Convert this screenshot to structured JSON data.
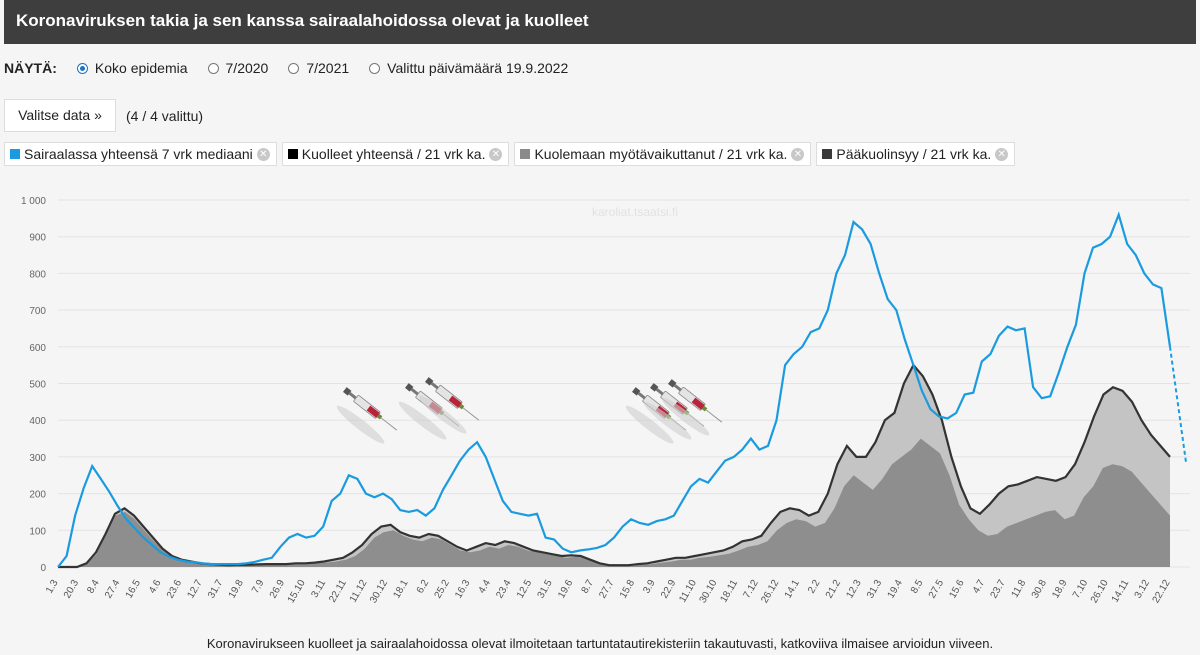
{
  "header": {
    "title": "Koronaviruksen takia ja sen kanssa sairaalahoidossa olevat ja kuolleet"
  },
  "controls": {
    "label": "NÄYTÄ:",
    "options": [
      "Koko epidemia",
      "7/2020",
      "7/2021",
      "Valittu päivämäärä 19.9.2022"
    ],
    "selected_index": 0
  },
  "select_data": {
    "button_label": "Valitse data »",
    "count_text": "(4 / 4 valittu)"
  },
  "legend": [
    {
      "label": "Sairaalassa yhteensä 7 vrk mediaani",
      "color": "#1a9be0"
    },
    {
      "label": "Kuolleet yhteensä / 21 vrk ka.",
      "color": "#000000"
    },
    {
      "label": "Kuolemaan myötävaikuttanut / 21 vrk ka.",
      "color": "#8a8a8a"
    },
    {
      "label": "Pääkuolinsyy / 21 vrk ka.",
      "color": "#3a3a3a"
    }
  ],
  "watermark": "karoliat.tsaatsi.fi",
  "footnote": "Koronavirukseen kuolleet ja sairaalahoidossa olevat ilmoitetaan tartuntatautirekisteriin takautuvasti, katkoviiva ilmaisee arvioidun viiveen.",
  "icons": {
    "vaccine": "syringe-icon",
    "remove": "close-circle-icon"
  },
  "chart_data": {
    "type": "area",
    "ylim": [
      0,
      1000
    ],
    "yticks": [
      "0",
      "100",
      "200",
      "300",
      "400",
      "500",
      "600",
      "700",
      "800",
      "900",
      "1 000"
    ],
    "x_tick_labels": [
      "1.3",
      "20.3",
      "8.4",
      "27.4",
      "16.5",
      "4.6",
      "23.6",
      "12.7",
      "31.7",
      "19.8",
      "7.9",
      "26.9",
      "15.10",
      "3.11",
      "22.11",
      "11.12",
      "30.12",
      "18.1",
      "6.2",
      "25.2",
      "16.3",
      "4.4",
      "23.4",
      "12.5",
      "31.5",
      "19.6",
      "8.7",
      "27.7",
      "15.8",
      "3.9",
      "22.9",
      "11.10",
      "30.10",
      "18.11",
      "7.12",
      "26.12",
      "14.1",
      "2.2",
      "21.2",
      "12.3",
      "31.3",
      "19.4",
      "8.5",
      "27.5",
      "15.6",
      "4.7",
      "23.7",
      "11.8",
      "30.8",
      "18.9",
      "7.10",
      "26.10",
      "14.11",
      "3.12",
      "22.12"
    ],
    "series": [
      {
        "name": "Sairaalassa yhteensä 7 vrk mediaani",
        "color": "#1a9be0",
        "values": [
          0,
          30,
          140,
          215,
          275,
          240,
          205,
          165,
          130,
          105,
          80,
          60,
          40,
          28,
          20,
          15,
          13,
          10,
          8,
          8,
          8,
          8,
          10,
          14,
          20,
          25,
          55,
          80,
          90,
          80,
          85,
          110,
          180,
          200,
          250,
          240,
          200,
          190,
          200,
          185,
          155,
          150,
          155,
          140,
          160,
          210,
          250,
          290,
          320,
          340,
          300,
          240,
          180,
          150,
          145,
          140,
          145,
          80,
          75,
          50,
          40,
          45,
          48,
          52,
          60,
          80,
          110,
          130,
          120,
          115,
          125,
          130,
          140,
          180,
          220,
          240,
          230,
          260,
          290,
          300,
          320,
          350,
          320,
          330,
          400,
          550,
          580,
          600,
          640,
          650,
          700,
          800,
          850,
          940,
          920,
          880,
          800,
          730,
          700,
          620,
          550,
          480,
          430,
          410,
          405,
          420,
          470,
          475,
          560,
          580,
          630,
          655,
          645,
          650,
          490,
          460,
          465,
          530,
          600,
          660,
          800,
          870,
          880,
          900,
          960,
          880,
          850,
          800,
          770,
          760,
          600
        ],
        "estimated_tail": [
          600,
          285
        ]
      },
      {
        "name": "Kuolleet yhteensä / 21 vrk ka.",
        "color": "#000000",
        "values": [
          0,
          0,
          0,
          10,
          40,
          90,
          145,
          160,
          140,
          110,
          80,
          50,
          30,
          20,
          15,
          10,
          8,
          6,
          5,
          6,
          6,
          7,
          8,
          8,
          8,
          10,
          10,
          12,
          15,
          20,
          25,
          40,
          60,
          90,
          110,
          115,
          95,
          85,
          80,
          90,
          85,
          70,
          55,
          45,
          55,
          65,
          60,
          70,
          65,
          55,
          45,
          40,
          35,
          30,
          32,
          30,
          20,
          10,
          5,
          5,
          5,
          8,
          10,
          15,
          20,
          25,
          25,
          30,
          35,
          40,
          45,
          55,
          70,
          75,
          85,
          120,
          150,
          160,
          155,
          140,
          150,
          200,
          280,
          330,
          300,
          300,
          340,
          400,
          420,
          500,
          550,
          520,
          470,
          400,
          300,
          220,
          160,
          145,
          170,
          200,
          220,
          225,
          235,
          245,
          240,
          235,
          245,
          280,
          340,
          410,
          470,
          490,
          480,
          450,
          400,
          360,
          330,
          300
        ]
      },
      {
        "name": "Kuolemaan myötävaikuttanut / 21 vrk ka.",
        "color": "#8a8a8a",
        "values": [
          0,
          0,
          0,
          10,
          40,
          90,
          145,
          160,
          140,
          110,
          80,
          50,
          30,
          20,
          15,
          10,
          8,
          6,
          5,
          6,
          6,
          7,
          8,
          8,
          8,
          10,
          10,
          12,
          15,
          20,
          25,
          40,
          60,
          90,
          110,
          115,
          95,
          85,
          80,
          90,
          85,
          70,
          55,
          45,
          55,
          65,
          60,
          70,
          65,
          55,
          45,
          40,
          35,
          30,
          32,
          30,
          20,
          10,
          5,
          5,
          5,
          8,
          10,
          15,
          20,
          25,
          25,
          30,
          35,
          40,
          45,
          55,
          70,
          75,
          85,
          120,
          150,
          160,
          155,
          140,
          150,
          200,
          280,
          330,
          300,
          300,
          340,
          400,
          420,
          500,
          550,
          520,
          470,
          400,
          300,
          220,
          160,
          145,
          170,
          200,
          220,
          225,
          235,
          245,
          240,
          235,
          245,
          280,
          340,
          410,
          470,
          490,
          480,
          450,
          400,
          360,
          330,
          300
        ]
      },
      {
        "name": "Pääkuolinsyy / 21 vrk ka.",
        "color": "#3a3a3a",
        "values": [
          0,
          0,
          0,
          8,
          35,
          85,
          140,
          150,
          130,
          100,
          70,
          45,
          25,
          18,
          12,
          8,
          6,
          5,
          4,
          5,
          5,
          6,
          7,
          7,
          7,
          8,
          8,
          10,
          12,
          15,
          20,
          30,
          50,
          80,
          95,
          100,
          85,
          75,
          70,
          80,
          75,
          60,
          45,
          40,
          45,
          55,
          50,
          60,
          55,
          45,
          40,
          35,
          30,
          25,
          28,
          25,
          15,
          8,
          4,
          4,
          4,
          6,
          8,
          12,
          15,
          20,
          20,
          25,
          28,
          32,
          36,
          45,
          55,
          60,
          70,
          100,
          120,
          130,
          125,
          110,
          120,
          160,
          220,
          250,
          230,
          210,
          240,
          280,
          300,
          320,
          350,
          330,
          310,
          250,
          170,
          130,
          100,
          85,
          90,
          110,
          120,
          130,
          140,
          150,
          155,
          130,
          140,
          190,
          220,
          270,
          280,
          275,
          260,
          230,
          200,
          170,
          140
        ]
      }
    ]
  }
}
